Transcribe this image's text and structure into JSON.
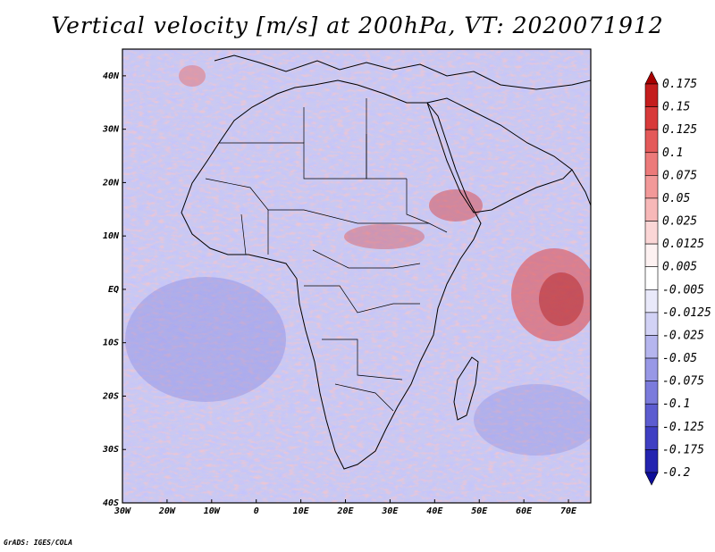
{
  "title": "Vertical velocity [m/s] at 200hPa, VT: 2020071912",
  "credit": "GrADS: IGES/COLA",
  "map": {
    "lon_range": [
      -30,
      75
    ],
    "lat_range": [
      -40,
      45
    ],
    "lat_labels": [
      "40N",
      "30N",
      "20N",
      "10N",
      "EQ",
      "10S",
      "20S",
      "30S",
      "40S"
    ],
    "lat_values": [
      40,
      30,
      20,
      10,
      0,
      -10,
      -20,
      -30,
      -40
    ],
    "lon_labels": [
      "30W",
      "20W",
      "10W",
      "0",
      "10E",
      "20E",
      "30E",
      "40E",
      "50E",
      "60E",
      "70E"
    ],
    "lon_values": [
      -30,
      -20,
      -10,
      0,
      10,
      20,
      30,
      40,
      50,
      60,
      70
    ]
  },
  "colorbar": {
    "labels": [
      "0.175",
      "0.15",
      "0.125",
      "0.1",
      "0.075",
      "0.05",
      "0.025",
      "0.0125",
      "0.005",
      "-0.005",
      "-0.0125",
      "-0.025",
      "-0.05",
      "-0.075",
      "-0.1",
      "-0.125",
      "-0.175",
      "-0.2"
    ],
    "colors": [
      "#a80000",
      "#c41d1d",
      "#d83a3a",
      "#e45a5a",
      "#ec7a7a",
      "#f29999",
      "#f7b8b8",
      "#fbd6d6",
      "#fdf1f1",
      "#ffffff",
      "#e9e9fa",
      "#d2d2f5",
      "#b5b5ee",
      "#9898e6",
      "#7b7bdc",
      "#5c5cd0",
      "#3f3fc3",
      "#2424b0",
      "#0e0e9a"
    ]
  }
}
